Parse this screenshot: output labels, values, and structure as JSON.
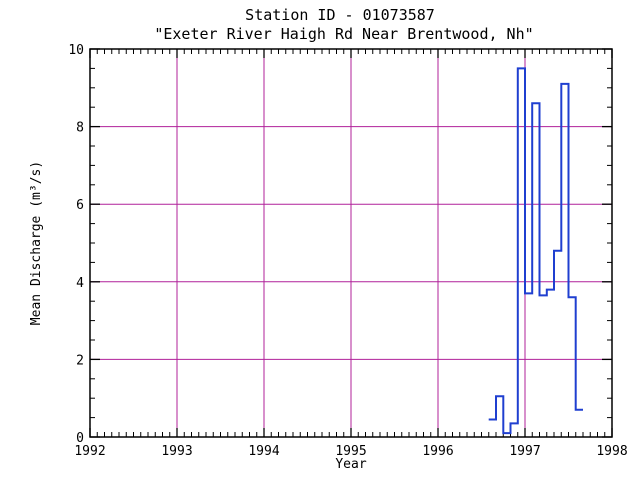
{
  "chart_data": {
    "type": "line",
    "title": "Station ID - 01073587",
    "subtitle": "\"Exeter River Haigh Rd Near Brentwood, Nh\"",
    "xlabel": "Year",
    "ylabel": "Mean Discharge (m³/s)",
    "xlim": [
      1992,
      1998
    ],
    "ylim": [
      0,
      10
    ],
    "x_ticks": [
      "1992",
      "1993",
      "1994",
      "1995",
      "1996",
      "1997",
      "1998"
    ],
    "y_ticks": [
      "0",
      "2",
      "4",
      "6",
      "8",
      "10"
    ],
    "grid": true,
    "step": true,
    "colors": {
      "series": "#1f3fd0",
      "grid": "#b0209a",
      "axis": "#000000"
    },
    "series": [
      {
        "x": [
          1996.583,
          1996.667,
          1996.75,
          1996.833,
          1996.917,
          1997.0,
          1997.083,
          1997.167,
          1997.25,
          1997.333,
          1997.417,
          1997.5,
          1997.583
        ],
        "values": [
          0.45,
          1.05,
          0.1,
          0.35,
          9.5,
          3.7,
          8.6,
          3.65,
          3.8,
          4.8,
          9.1,
          3.6,
          0.7
        ]
      }
    ]
  }
}
